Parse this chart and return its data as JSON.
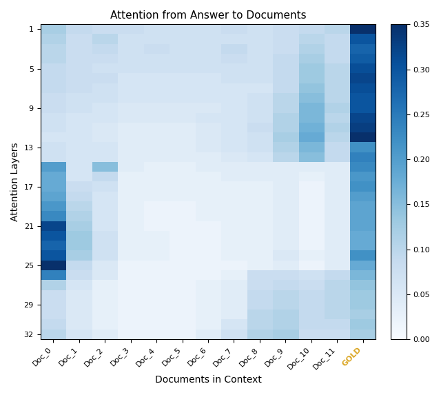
{
  "title": "Attention from Answer to Documents",
  "xlabel": "Documents in Context",
  "ylabel": "Attention Layers",
  "x_labels": [
    "Doc_0",
    "Doc_1",
    "Doc_2",
    "Doc_3",
    "Doc_4",
    "Doc_5",
    "Doc_6",
    "Doc_7",
    "Doc_8",
    "Doc_9",
    "Doc_10",
    "Doc_11",
    "GOLD"
  ],
  "y_ticks": [
    1,
    5,
    9,
    13,
    17,
    21,
    25,
    29,
    32
  ],
  "n_layers": 32,
  "n_docs": 13,
  "vmin": 0.0,
  "vmax": 0.35,
  "colormap": "Blues",
  "gold_color": "#DAA520",
  "data": [
    [
      0.12,
      0.09,
      0.08,
      0.08,
      0.07,
      0.07,
      0.07,
      0.08,
      0.07,
      0.08,
      0.09,
      0.1,
      0.35
    ],
    [
      0.11,
      0.08,
      0.1,
      0.07,
      0.07,
      0.07,
      0.07,
      0.07,
      0.07,
      0.08,
      0.1,
      0.09,
      0.3
    ],
    [
      0.1,
      0.08,
      0.09,
      0.07,
      0.08,
      0.07,
      0.07,
      0.09,
      0.07,
      0.08,
      0.11,
      0.09,
      0.28
    ],
    [
      0.1,
      0.08,
      0.08,
      0.07,
      0.07,
      0.07,
      0.07,
      0.08,
      0.07,
      0.09,
      0.12,
      0.09,
      0.29
    ],
    [
      0.09,
      0.08,
      0.07,
      0.07,
      0.07,
      0.07,
      0.07,
      0.07,
      0.07,
      0.09,
      0.13,
      0.1,
      0.31
    ],
    [
      0.09,
      0.08,
      0.08,
      0.06,
      0.06,
      0.06,
      0.06,
      0.07,
      0.07,
      0.09,
      0.13,
      0.1,
      0.32
    ],
    [
      0.09,
      0.08,
      0.07,
      0.06,
      0.06,
      0.06,
      0.06,
      0.06,
      0.06,
      0.09,
      0.14,
      0.1,
      0.31
    ],
    [
      0.08,
      0.07,
      0.07,
      0.06,
      0.06,
      0.06,
      0.06,
      0.06,
      0.07,
      0.1,
      0.15,
      0.1,
      0.3
    ],
    [
      0.08,
      0.07,
      0.06,
      0.05,
      0.05,
      0.05,
      0.05,
      0.06,
      0.07,
      0.1,
      0.16,
      0.11,
      0.3
    ],
    [
      0.07,
      0.06,
      0.06,
      0.05,
      0.05,
      0.05,
      0.06,
      0.06,
      0.07,
      0.11,
      0.16,
      0.1,
      0.32
    ],
    [
      0.07,
      0.06,
      0.05,
      0.04,
      0.04,
      0.04,
      0.05,
      0.06,
      0.08,
      0.11,
      0.17,
      0.11,
      0.33
    ],
    [
      0.06,
      0.06,
      0.05,
      0.04,
      0.04,
      0.04,
      0.05,
      0.06,
      0.07,
      0.12,
      0.18,
      0.1,
      0.35
    ],
    [
      0.07,
      0.06,
      0.06,
      0.04,
      0.04,
      0.04,
      0.05,
      0.06,
      0.07,
      0.11,
      0.16,
      0.09,
      0.22
    ],
    [
      0.07,
      0.06,
      0.06,
      0.04,
      0.04,
      0.04,
      0.04,
      0.05,
      0.06,
      0.1,
      0.15,
      0.09,
      0.24
    ],
    [
      0.2,
      0.06,
      0.15,
      0.04,
      0.03,
      0.03,
      0.04,
      0.04,
      0.04,
      0.04,
      0.04,
      0.04,
      0.23
    ],
    [
      0.18,
      0.06,
      0.09,
      0.03,
      0.03,
      0.03,
      0.03,
      0.04,
      0.04,
      0.04,
      0.03,
      0.04,
      0.21
    ],
    [
      0.18,
      0.08,
      0.07,
      0.03,
      0.03,
      0.03,
      0.03,
      0.03,
      0.03,
      0.04,
      0.02,
      0.04,
      0.22
    ],
    [
      0.19,
      0.09,
      0.06,
      0.03,
      0.03,
      0.03,
      0.03,
      0.03,
      0.03,
      0.04,
      0.02,
      0.04,
      0.2
    ],
    [
      0.21,
      0.1,
      0.06,
      0.03,
      0.02,
      0.02,
      0.03,
      0.03,
      0.03,
      0.04,
      0.02,
      0.04,
      0.19
    ],
    [
      0.23,
      0.11,
      0.06,
      0.03,
      0.02,
      0.02,
      0.03,
      0.03,
      0.03,
      0.04,
      0.02,
      0.04,
      0.19
    ],
    [
      0.32,
      0.12,
      0.06,
      0.03,
      0.02,
      0.02,
      0.02,
      0.03,
      0.03,
      0.04,
      0.02,
      0.04,
      0.19
    ],
    [
      0.3,
      0.13,
      0.07,
      0.03,
      0.03,
      0.02,
      0.02,
      0.03,
      0.03,
      0.04,
      0.02,
      0.04,
      0.18
    ],
    [
      0.28,
      0.13,
      0.07,
      0.03,
      0.03,
      0.02,
      0.02,
      0.03,
      0.03,
      0.04,
      0.02,
      0.04,
      0.18
    ],
    [
      0.3,
      0.12,
      0.07,
      0.03,
      0.03,
      0.02,
      0.02,
      0.03,
      0.03,
      0.05,
      0.03,
      0.04,
      0.22
    ],
    [
      0.35,
      0.09,
      0.05,
      0.02,
      0.02,
      0.02,
      0.02,
      0.02,
      0.03,
      0.04,
      0.02,
      0.04,
      0.18
    ],
    [
      0.24,
      0.08,
      0.05,
      0.02,
      0.02,
      0.02,
      0.02,
      0.03,
      0.08,
      0.08,
      0.07,
      0.09,
      0.16
    ],
    [
      0.11,
      0.06,
      0.03,
      0.02,
      0.02,
      0.02,
      0.03,
      0.04,
      0.08,
      0.09,
      0.08,
      0.1,
      0.14
    ],
    [
      0.08,
      0.05,
      0.03,
      0.02,
      0.02,
      0.02,
      0.03,
      0.04,
      0.09,
      0.1,
      0.09,
      0.1,
      0.13
    ],
    [
      0.08,
      0.05,
      0.03,
      0.02,
      0.02,
      0.02,
      0.03,
      0.04,
      0.09,
      0.1,
      0.09,
      0.1,
      0.13
    ],
    [
      0.08,
      0.05,
      0.03,
      0.02,
      0.02,
      0.02,
      0.03,
      0.04,
      0.1,
      0.11,
      0.09,
      0.1,
      0.12
    ],
    [
      0.09,
      0.05,
      0.03,
      0.02,
      0.02,
      0.02,
      0.03,
      0.06,
      0.1,
      0.11,
      0.09,
      0.09,
      0.13
    ],
    [
      0.1,
      0.06,
      0.04,
      0.02,
      0.02,
      0.02,
      0.04,
      0.07,
      0.11,
      0.12,
      0.08,
      0.08,
      0.12
    ]
  ]
}
